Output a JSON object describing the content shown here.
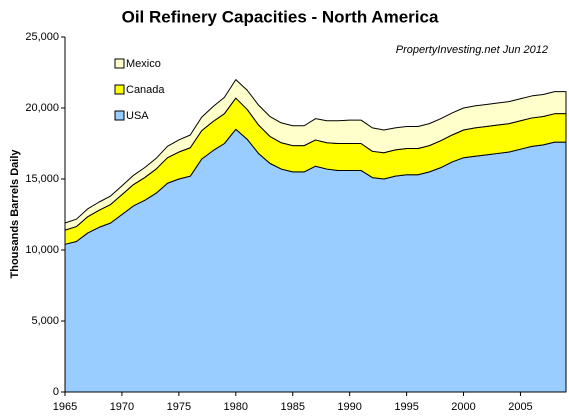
{
  "chart_data": {
    "type": "area",
    "stacked": true,
    "title": "Oil Refinery Capacities - North America",
    "y_label": "Thousands Barrels Daily",
    "annotation": "PropertyInvesting.net  Jun 2012",
    "x": [
      1965,
      1966,
      1967,
      1968,
      1969,
      1970,
      1971,
      1972,
      1973,
      1974,
      1975,
      1976,
      1977,
      1978,
      1979,
      1980,
      1981,
      1982,
      1983,
      1984,
      1985,
      1986,
      1987,
      1988,
      1989,
      1990,
      1991,
      1992,
      1993,
      1994,
      1995,
      1996,
      1997,
      1998,
      1999,
      2000,
      2001,
      2002,
      2003,
      2004,
      2005,
      2006,
      2007,
      2008,
      2009
    ],
    "series": [
      {
        "name": "USA",
        "color": "#99ccff",
        "values": [
          10400,
          10600,
          11200,
          11600,
          11900,
          12500,
          13100,
          13500,
          14000,
          14700,
          15000,
          15200,
          16400,
          17000,
          17500,
          18500,
          17800,
          16800,
          16100,
          15700,
          15500,
          15500,
          15900,
          15700,
          15600,
          15600,
          15600,
          15100,
          15000,
          15200,
          15300,
          15300,
          15500,
          15800,
          16200,
          16500,
          16600,
          16700,
          16800,
          16900,
          17100,
          17300,
          17400,
          17600,
          17600
        ]
      },
      {
        "name": "Canada",
        "color": "#ffff00",
        "values": [
          1000,
          1050,
          1150,
          1200,
          1300,
          1400,
          1500,
          1600,
          1700,
          1800,
          1900,
          2000,
          2000,
          2050,
          2100,
          2200,
          2100,
          2000,
          1900,
          1850,
          1850,
          1850,
          1850,
          1850,
          1900,
          1900,
          1900,
          1850,
          1850,
          1850,
          1850,
          1850,
          1850,
          1900,
          1900,
          1950,
          2000,
          2000,
          2000,
          2000,
          2000,
          2000,
          2000,
          2000,
          2000
        ]
      },
      {
        "name": "Mexico",
        "color": "#ffffcc",
        "values": [
          500,
          520,
          550,
          580,
          600,
          620,
          650,
          700,
          750,
          800,
          850,
          900,
          950,
          1050,
          1150,
          1300,
          1350,
          1400,
          1400,
          1400,
          1400,
          1400,
          1500,
          1550,
          1600,
          1650,
          1650,
          1650,
          1600,
          1550,
          1550,
          1550,
          1550,
          1550,
          1550,
          1550,
          1550,
          1550,
          1550,
          1550,
          1550,
          1550,
          1550,
          1550,
          1550
        ]
      }
    ],
    "xlim": [
      1965,
      2009
    ],
    "xticks": [
      1965,
      1970,
      1975,
      1980,
      1985,
      1990,
      1995,
      2000,
      2005
    ],
    "ylim": [
      0,
      25000
    ],
    "yticks": [
      0,
      {
        "value": 5000,
        "label": "5,000"
      },
      {
        "value": 10000,
        "label": "10,000"
      },
      {
        "value": 15000,
        "label": "15,000"
      },
      {
        "value": 20000,
        "label": "20,000"
      },
      {
        "value": 25000,
        "label": "25,000"
      }
    ],
    "grid": false,
    "legend": "upper left"
  }
}
